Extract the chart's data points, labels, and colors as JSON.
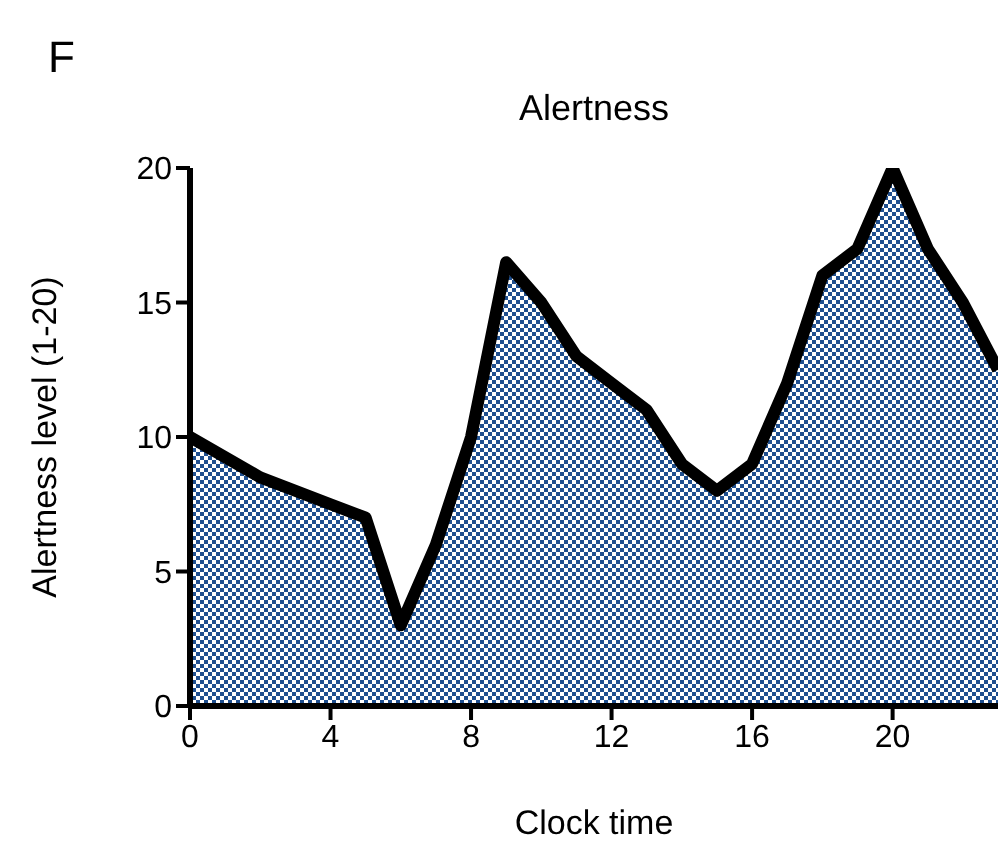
{
  "chart_data": {
    "type": "area",
    "title": "Alertness",
    "xlabel": "Clock time",
    "ylabel": "Alertness level (1-20)",
    "annotations": [
      "F"
    ],
    "x": [
      0,
      2,
      4,
      5,
      6,
      7,
      8,
      9,
      10,
      11,
      12,
      13,
      14,
      15,
      16,
      17,
      18,
      19,
      20,
      21,
      22,
      23
    ],
    "series": [
      {
        "color": "#1f4f8f",
        "values": [
          10,
          8.5,
          7.5,
          7,
          3,
          6,
          10,
          16.5,
          15,
          13,
          12,
          11,
          9,
          8,
          9,
          12,
          16,
          17,
          20,
          17,
          15,
          12.5
        ]
      }
    ],
    "xlim": [
      0,
      23
    ],
    "xticks": [
      0,
      4,
      8,
      12,
      16,
      20
    ],
    "ylim": [
      0,
      20
    ],
    "yticks": [
      0,
      5,
      10,
      15,
      20
    ],
    "grid": false,
    "legend": false
  }
}
